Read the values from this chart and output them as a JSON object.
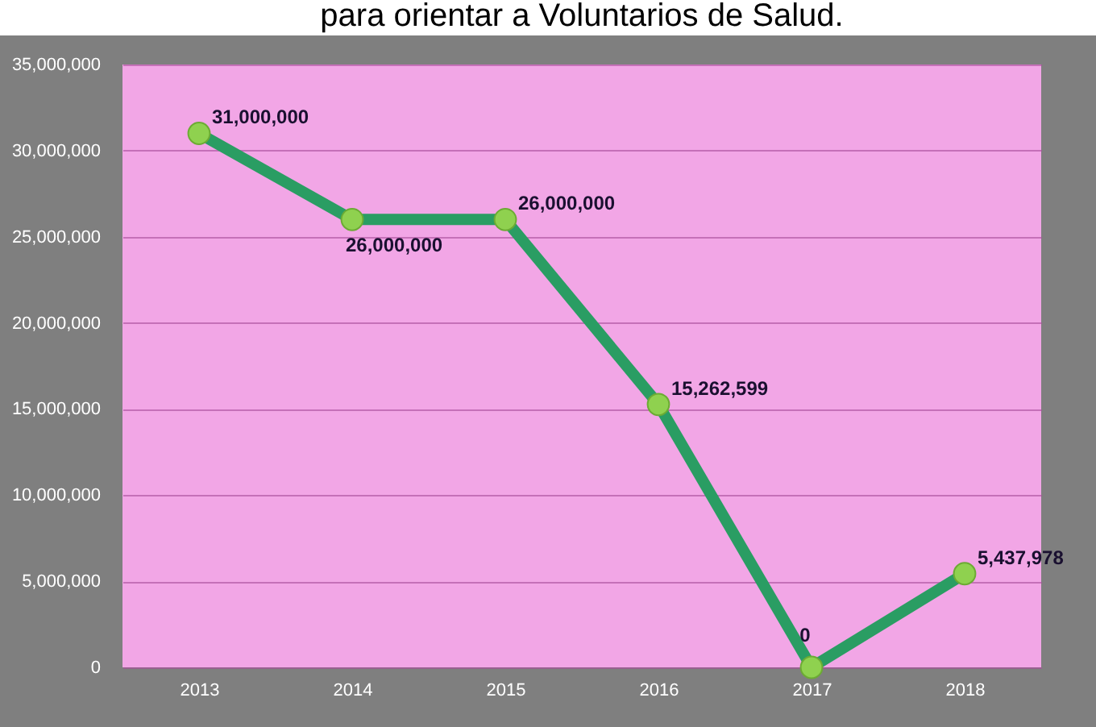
{
  "chart_data": {
    "type": "line",
    "title": "para orientar a Voluntarios de Salud.",
    "categories": [
      "2013",
      "2014",
      "2015",
      "2016",
      "2017",
      "2018"
    ],
    "series": [
      {
        "color": "#2a9d63",
        "values": [
          31000000,
          26000000,
          26000000,
          15262599,
          0,
          5437978
        ],
        "value_labels": [
          "31,000,000",
          "26,000,000",
          "26,000,000",
          "15,262,599",
          "0",
          "5,437,978"
        ]
      }
    ],
    "ylim": [
      0,
      35000000
    ],
    "yticks": [
      {
        "value": 0,
        "label": "0"
      },
      {
        "value": 5000000,
        "label": "5,000,000"
      },
      {
        "value": 10000000,
        "label": "10,000,000"
      },
      {
        "value": 15000000,
        "label": "15,000,000"
      },
      {
        "value": 20000000,
        "label": "20,000,000"
      },
      {
        "value": 25000000,
        "label": "25,000,000"
      },
      {
        "value": 30000000,
        "label": "30,000,000"
      },
      {
        "value": 35000000,
        "label": "35,000,000"
      }
    ],
    "grid": "y",
    "marker": "circle"
  }
}
